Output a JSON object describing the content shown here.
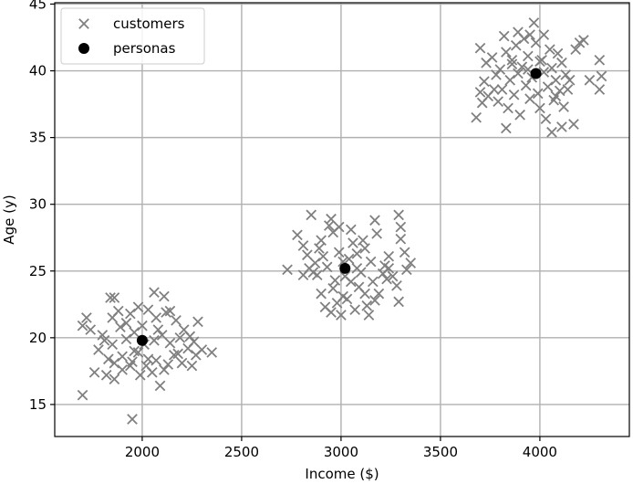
{
  "chart_data": {
    "type": "scatter",
    "xlabel": "Income ($)",
    "ylabel": "Age (y)",
    "xlim": [
      1560,
      4450
    ],
    "ylim": [
      12.6,
      45.1
    ],
    "xticks": [
      2000,
      2500,
      3000,
      3500,
      4000
    ],
    "yticks": [
      15,
      20,
      25,
      30,
      35,
      40,
      45
    ],
    "grid": true,
    "legend_position": "top-left",
    "colors": {
      "customers": "#808080",
      "personas": "#000000",
      "grid": "#b0b0b0"
    },
    "series": [
      {
        "name": "customers",
        "marker": "x",
        "points": [
          [
            1700,
            15.7
          ],
          [
            1950,
            13.9
          ],
          [
            1760,
            17.4
          ],
          [
            1820,
            17.2
          ],
          [
            1860,
            16.9
          ],
          [
            1900,
            17.6
          ],
          [
            1940,
            17.9
          ],
          [
            1990,
            17.2
          ],
          [
            2050,
            17.4
          ],
          [
            2110,
            17.6
          ],
          [
            2200,
            18.1
          ],
          [
            2250,
            17.9
          ],
          [
            2090,
            16.4
          ],
          [
            1700,
            20.9
          ],
          [
            1720,
            21.5
          ],
          [
            1740,
            20.6
          ],
          [
            1800,
            20.2
          ],
          [
            1780,
            19.1
          ],
          [
            1850,
            19.5
          ],
          [
            1890,
            20.8
          ],
          [
            1920,
            19.9
          ],
          [
            1960,
            20.4
          ],
          [
            2010,
            19.5
          ],
          [
            2030,
            18.4
          ],
          [
            2060,
            19.8
          ],
          [
            2100,
            20.2
          ],
          [
            2140,
            19.6
          ],
          [
            2180,
            18.8
          ],
          [
            2230,
            19.2
          ],
          [
            2270,
            18.7
          ],
          [
            2300,
            19.1
          ],
          [
            2350,
            18.9
          ],
          [
            1830,
            18.4
          ],
          [
            1860,
            18.1
          ],
          [
            1900,
            18.6
          ],
          [
            1950,
            18.2
          ],
          [
            1980,
            18.9
          ],
          [
            2020,
            17.9
          ],
          [
            2070,
            18.3
          ],
          [
            2130,
            18.0
          ],
          [
            2160,
            18.7
          ],
          [
            1850,
            21.5
          ],
          [
            1880,
            22.0
          ],
          [
            1940,
            21.8
          ],
          [
            1980,
            22.3
          ],
          [
            2030,
            22.1
          ],
          [
            2070,
            21.5
          ],
          [
            2120,
            21.9
          ],
          [
            2170,
            21.3
          ],
          [
            2210,
            20.6
          ],
          [
            2240,
            20.1
          ],
          [
            2280,
            21.2
          ],
          [
            1840,
            23.0
          ],
          [
            1860,
            23.0
          ],
          [
            2060,
            23.4
          ],
          [
            2110,
            23.1
          ],
          [
            2140,
            22.0
          ],
          [
            1920,
            21.1
          ],
          [
            1960,
            19.0
          ],
          [
            2000,
            20.9
          ],
          [
            2080,
            20.6
          ],
          [
            2190,
            20.0
          ],
          [
            2260,
            19.7
          ],
          [
            1810,
            19.8
          ],
          [
            2730,
            25.1
          ],
          [
            2780,
            27.7
          ],
          [
            2810,
            26.9
          ],
          [
            2830,
            26.2
          ],
          [
            2850,
            29.2
          ],
          [
            2870,
            25.6
          ],
          [
            2880,
            24.7
          ],
          [
            2900,
            27.3
          ],
          [
            2910,
            26.1
          ],
          [
            2930,
            25.3
          ],
          [
            2940,
            28.4
          ],
          [
            2960,
            27.9
          ],
          [
            2970,
            24.3
          ],
          [
            2990,
            26.4
          ],
          [
            3010,
            23.1
          ],
          [
            3020,
            24.6
          ],
          [
            3040,
            25.9
          ],
          [
            3060,
            27.1
          ],
          [
            3080,
            26.3
          ],
          [
            3090,
            23.8
          ],
          [
            3100,
            24.9
          ],
          [
            3120,
            26.7
          ],
          [
            3130,
            22.4
          ],
          [
            3150,
            25.7
          ],
          [
            3160,
            24.2
          ],
          [
            3180,
            27.8
          ],
          [
            3190,
            23.3
          ],
          [
            3210,
            24.8
          ],
          [
            3220,
            25.4
          ],
          [
            3240,
            26.1
          ],
          [
            3260,
            24.6
          ],
          [
            3280,
            23.9
          ],
          [
            3290,
            29.2
          ],
          [
            3300,
            27.4
          ],
          [
            3320,
            26.4
          ],
          [
            3330,
            25.1
          ],
          [
            3350,
            25.6
          ],
          [
            2900,
            23.3
          ],
          [
            2920,
            22.3
          ],
          [
            2950,
            21.9
          ],
          [
            2980,
            22.6
          ],
          [
            3000,
            21.7
          ],
          [
            3030,
            22.9
          ],
          [
            3070,
            22.1
          ],
          [
            3140,
            21.7
          ],
          [
            3170,
            22.8
          ],
          [
            3230,
            24.4
          ],
          [
            3290,
            22.7
          ],
          [
            2860,
            24.9
          ],
          [
            2890,
            26.7
          ],
          [
            2950,
            28.9
          ],
          [
            2990,
            28.3
          ],
          [
            3050,
            28.1
          ],
          [
            3110,
            27.3
          ],
          [
            3170,
            28.8
          ],
          [
            2810,
            24.7
          ],
          [
            2840,
            25.2
          ],
          [
            3010,
            25.7
          ],
          [
            3050,
            24.2
          ],
          [
            3080,
            25.2
          ],
          [
            3300,
            28.3
          ],
          [
            2960,
            23.7
          ],
          [
            3120,
            23.3
          ],
          [
            3240,
            25.2
          ],
          [
            3680,
            36.5
          ],
          [
            3700,
            38.4
          ],
          [
            3710,
            37.6
          ],
          [
            3720,
            39.2
          ],
          [
            3730,
            40.6
          ],
          [
            3740,
            38.1
          ],
          [
            3760,
            41.0
          ],
          [
            3780,
            39.7
          ],
          [
            3790,
            37.7
          ],
          [
            3800,
            40.1
          ],
          [
            3810,
            38.6
          ],
          [
            3820,
            42.6
          ],
          [
            3830,
            41.4
          ],
          [
            3840,
            37.2
          ],
          [
            3850,
            39.3
          ],
          [
            3860,
            40.5
          ],
          [
            3870,
            38.2
          ],
          [
            3880,
            41.9
          ],
          [
            3890,
            39.8
          ],
          [
            3900,
            36.7
          ],
          [
            3910,
            40.3
          ],
          [
            3920,
            42.4
          ],
          [
            3930,
            38.9
          ],
          [
            3940,
            41.1
          ],
          [
            3950,
            37.9
          ],
          [
            3960,
            39.5
          ],
          [
            3970,
            43.6
          ],
          [
            3980,
            42.1
          ],
          [
            3990,
            38.3
          ],
          [
            4000,
            37.2
          ],
          [
            4010,
            40.8
          ],
          [
            4020,
            39.9
          ],
          [
            4030,
            36.4
          ],
          [
            4040,
            38.8
          ],
          [
            4050,
            41.6
          ],
          [
            4060,
            40.2
          ],
          [
            4070,
            37.8
          ],
          [
            4080,
            39.3
          ],
          [
            4090,
            41.3
          ],
          [
            4100,
            38.5
          ],
          [
            4110,
            40.6
          ],
          [
            4120,
            37.3
          ],
          [
            4130,
            39.7
          ],
          [
            4140,
            38.6
          ],
          [
            4150,
            39.3
          ],
          [
            4170,
            36.0
          ],
          [
            4180,
            41.6
          ],
          [
            4200,
            42.1
          ],
          [
            4220,
            42.3
          ],
          [
            4250,
            39.3
          ],
          [
            4300,
            40.8
          ],
          [
            4300,
            38.6
          ],
          [
            4310,
            39.6
          ],
          [
            3700,
            41.7
          ],
          [
            3770,
            38.6
          ],
          [
            3830,
            35.7
          ],
          [
            3890,
            42.9
          ],
          [
            3950,
            42.7
          ],
          [
            4000,
            40.7
          ],
          [
            4060,
            35.4
          ],
          [
            4110,
            35.8
          ],
          [
            3860,
            40.8
          ],
          [
            3940,
            40.1
          ],
          [
            4020,
            42.7
          ],
          [
            4080,
            38.1
          ]
        ]
      },
      {
        "name": "personas",
        "marker": "o",
        "points": [
          [
            2000,
            19.8
          ],
          [
            3020,
            25.2
          ],
          [
            3980,
            39.8
          ]
        ]
      }
    ]
  }
}
